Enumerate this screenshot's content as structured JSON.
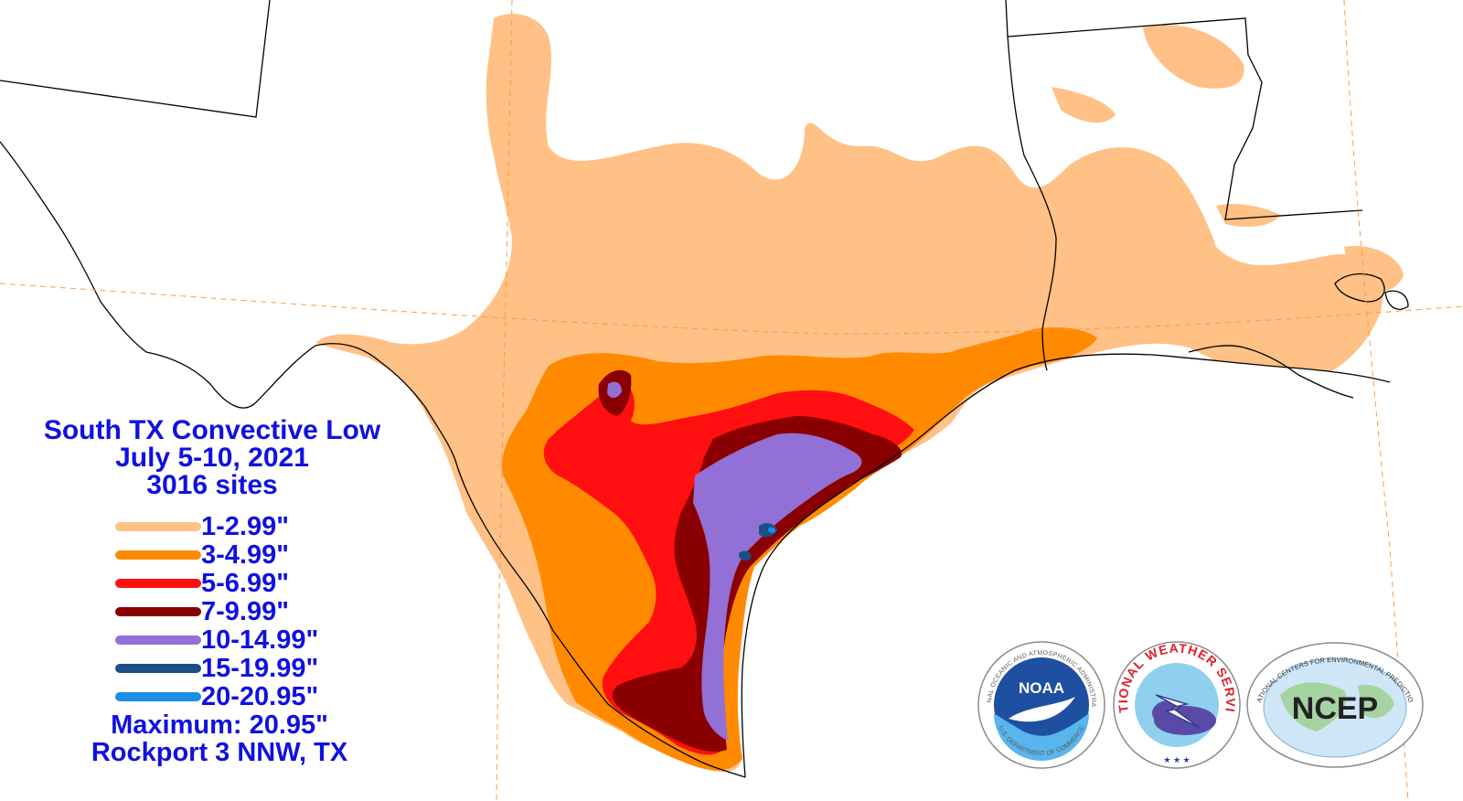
{
  "title": {
    "line1": "South TX Convective Low",
    "line2": "July 5-10, 2021",
    "line3": "3016 sites"
  },
  "legend": [
    {
      "label": "1-2.99\"",
      "color": "#ffc185"
    },
    {
      "label": "3-4.99\"",
      "color": "#ff8a00"
    },
    {
      "label": "5-6.99\"",
      "color": "#ff0f10"
    },
    {
      "label": "7-9.99\"",
      "color": "#8a0000"
    },
    {
      "label": "10-14.99\"",
      "color": "#9270d6"
    },
    {
      "label": "15-19.99\"",
      "color": "#1c4f86"
    },
    {
      "label": "20-20.95\"",
      "color": "#1a8ee8"
    }
  ],
  "maximum": {
    "value_text": "Maximum: 20.95\"",
    "location_text": "Rockport 3 NNW, TX"
  },
  "logos": {
    "noaa": {
      "ring_top": "NATIONAL OCEANIC AND ATMOSPHERIC ADMINISTRATION",
      "ring_bottom": "U.S. DEPARTMENT OF COMMERCE",
      "center": "NOAA"
    },
    "nws": {
      "ring_text": "NATIONAL WEATHER SERVICE"
    },
    "ncep": {
      "ring_text": "NATIONAL CENTERS FOR ENVIRONMENTAL PREDICTION",
      "center": "NCEP"
    }
  }
}
